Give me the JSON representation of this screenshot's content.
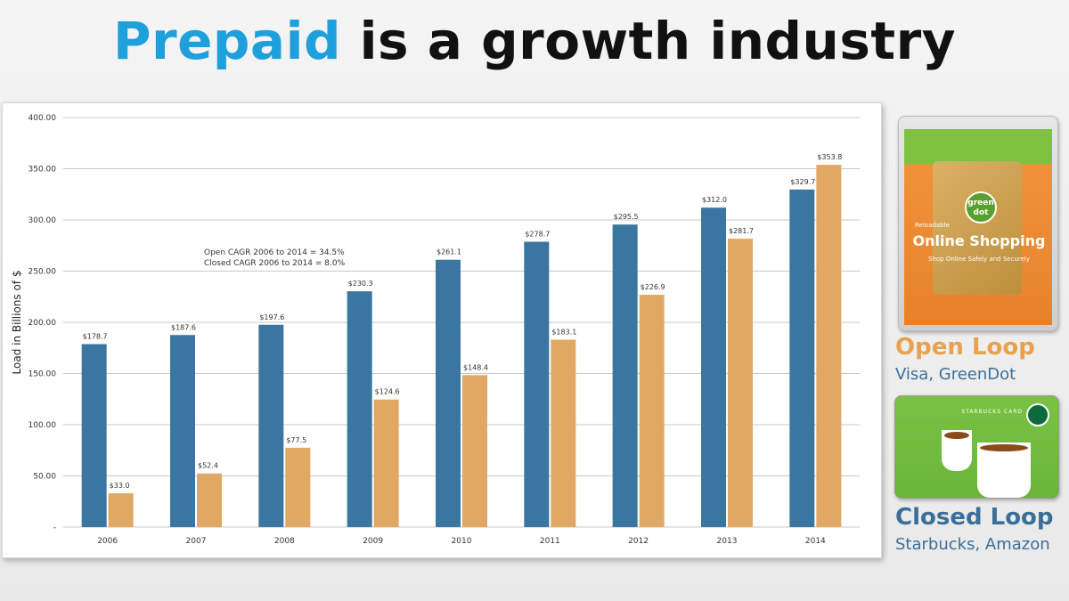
{
  "title": {
    "highlight": "Prepaid",
    "rest": " is a growth industry"
  },
  "colors": {
    "open": "#3a76a0",
    "closed": "#e0a862",
    "highlight": "#1ea0dc",
    "open_loop_text": "#e8a24e",
    "closed_loop_text": "#3b6f99"
  },
  "chart_data": {
    "type": "bar",
    "categories": [
      "2006",
      "2007",
      "2008",
      "2009",
      "2010",
      "2011",
      "2012",
      "2013",
      "2014"
    ],
    "series": [
      {
        "values": [
          178.7,
          187.6,
          197.6,
          230.3,
          261.1,
          278.7,
          295.5,
          312.0,
          329.7
        ],
        "labels": [
          "$178.7",
          "$187.6",
          "$197.6",
          "$230.3",
          "$261.1",
          "$278.7",
          "$295.5",
          "$312.0",
          "$329.7"
        ]
      },
      {
        "values": [
          33.0,
          52.4,
          77.5,
          124.6,
          148.4,
          183.1,
          226.9,
          281.7,
          353.8
        ],
        "labels": [
          "$33.0",
          "$52.4",
          "$77.5",
          "$124.6",
          "$148.4",
          "$183.1",
          "$226.9",
          "$281.7",
          "$353.8"
        ]
      }
    ],
    "ylabel": "Load in Billions of $",
    "ylim": [
      0,
      400
    ],
    "yticks": [
      0,
      50,
      100,
      150,
      200,
      250,
      300,
      350,
      400
    ],
    "ytick_labels": [
      "-",
      "50.00",
      "100.00",
      "150.00",
      "200.00",
      "250.00",
      "300.00",
      "350.00",
      "400.00"
    ],
    "grid": true,
    "annotations": [
      "Open CAGR 2006 to 2014 = 34.5%",
      "Closed CAGR 2006 to 2014 = 8.0%"
    ]
  },
  "cards": {
    "open": {
      "title": "Open Loop",
      "subtitle": "Visa, GreenDot",
      "card_brand": "green dot",
      "card_headline": "Online Shopping",
      "card_tagline": "Shop Online Safely and Securely",
      "card_type": "Reloadable"
    },
    "closed": {
      "title": "Closed Loop",
      "subtitle": "Starbucks, Amazon",
      "card_label": "STARBUCKS CARD"
    }
  }
}
